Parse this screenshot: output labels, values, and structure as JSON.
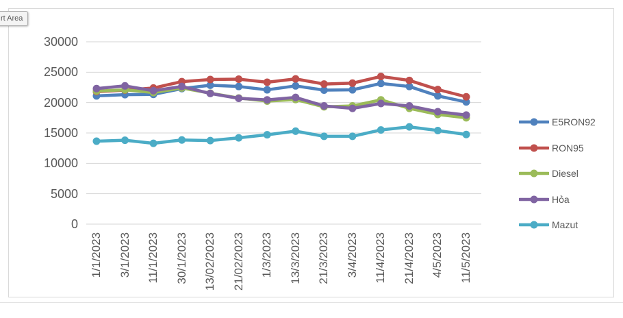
{
  "tooltip": {
    "label": "rt Area"
  },
  "chart_data": {
    "type": "line",
    "title": "",
    "xlabel": "",
    "ylabel": "",
    "categories": [
      "1/1/2023",
      "3/1/2023",
      "11/1/2023",
      "30/1/2023",
      "13/02/2023",
      "21/02/2023",
      "1/3/2023",
      "13/3/2023",
      "21/3/2023",
      "3/4/2023",
      "11/4/2023",
      "21/4/2023",
      "4/5/2023",
      "11/5/2023"
    ],
    "series": [
      {
        "name": "E5RON92",
        "color": "#4f81bd",
        "values": [
          21100,
          21300,
          21350,
          22300,
          22850,
          22650,
          22100,
          22750,
          22050,
          22100,
          23150,
          22650,
          21100,
          20100
        ]
      },
      {
        "name": "RON95",
        "color": "#c0504d",
        "values": [
          21800,
          22050,
          22400,
          23450,
          23800,
          23850,
          23350,
          23900,
          23050,
          23200,
          24300,
          23650,
          22150,
          20950
        ]
      },
      {
        "name": "Diesel",
        "color": "#9bbb59",
        "values": [
          21900,
          22100,
          21650,
          22400,
          21550,
          20750,
          20250,
          20500,
          19300,
          19450,
          20450,
          19050,
          18050,
          17500
        ]
      },
      {
        "name": "Hỏa",
        "color": "#8064a2",
        "values": [
          22300,
          22750,
          21950,
          22650,
          21500,
          20700,
          20450,
          20850,
          19450,
          19050,
          19850,
          19450,
          18500,
          17950
        ]
      },
      {
        "name": "Mazut",
        "color": "#4bacc6",
        "values": [
          13650,
          13800,
          13300,
          13850,
          13750,
          14200,
          14700,
          15300,
          14450,
          14450,
          15500,
          16000,
          15400,
          14750
        ]
      }
    ],
    "yticks": [
      0,
      5000,
      10000,
      15000,
      20000,
      25000,
      30000
    ],
    "ylim": [
      0,
      30000
    ],
    "grid": "horizontal",
    "legend_position": "right"
  },
  "style": {
    "grid_color": "#d6d6d6",
    "axis_text_color": "#595959",
    "chart_border_color": "#d9d9d9"
  }
}
